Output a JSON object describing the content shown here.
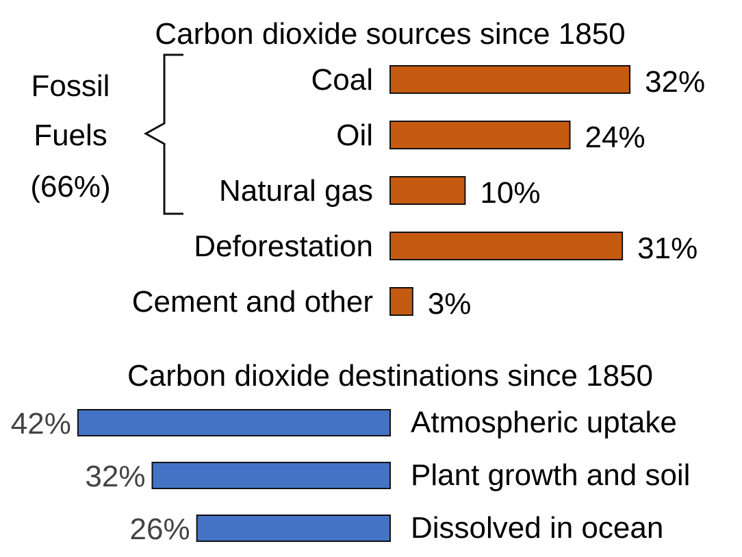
{
  "chart_data": [
    {
      "type": "bar",
      "orientation": "horizontal",
      "title": "Carbon dioxide sources since 1850",
      "categories": [
        "Coal",
        "Oil",
        "Natural gas",
        "Deforestation",
        "Cement and other"
      ],
      "values": [
        32,
        24,
        10,
        31,
        3
      ],
      "value_labels": [
        "32%",
        "24%",
        "10%",
        "31%",
        "3%"
      ],
      "unit": "%",
      "bar_color": "#c55a11",
      "group_annotation": {
        "label_lines": [
          "Fossil",
          "Fuels",
          "(66%)"
        ],
        "members": [
          "Coal",
          "Oil",
          "Natural gas"
        ]
      }
    },
    {
      "type": "bar",
      "orientation": "horizontal",
      "direction": "right-to-left",
      "title": "Carbon dioxide destinations since 1850",
      "categories": [
        "Atmospheric uptake",
        "Plant growth and soil",
        "Dissolved in ocean"
      ],
      "values": [
        42,
        32,
        26
      ],
      "value_labels": [
        "42%",
        "32%",
        "26%"
      ],
      "unit": "%",
      "bar_color": "#4472c4"
    }
  ]
}
